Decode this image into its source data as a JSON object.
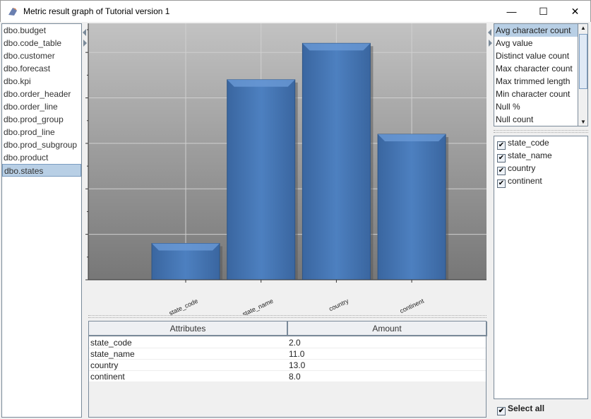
{
  "window": {
    "title": "Metric result graph of Tutorial version 1",
    "minimize": "—",
    "maximize": "☐",
    "close": "✕"
  },
  "tables": {
    "items": [
      "dbo.budget",
      "dbo.code_table",
      "dbo.customer",
      "dbo.forecast",
      "dbo.kpi",
      "dbo.order_header",
      "dbo.order_line",
      "dbo.prod_group",
      "dbo.prod_line",
      "dbo.prod_subgroup",
      "dbo.product",
      "dbo.states"
    ],
    "selected": "dbo.states"
  },
  "metrics": {
    "items": [
      "Avg character count",
      "Avg value",
      "Distinct value count",
      "Max character count",
      "Max trimmed length",
      "Min character count",
      "Null %",
      "Null count"
    ],
    "selected": "Avg character count"
  },
  "columns": {
    "items": [
      {
        "label": "state_code",
        "checked": true
      },
      {
        "label": "state_name",
        "checked": true
      },
      {
        "label": "country",
        "checked": true
      },
      {
        "label": "continent",
        "checked": true
      }
    ],
    "select_all": {
      "label": "Select all",
      "checked": true
    }
  },
  "result_table": {
    "headers": [
      "Attributes",
      "Amount"
    ],
    "rows": [
      [
        "state_code",
        "2.0"
      ],
      [
        "state_name",
        "11.0"
      ],
      [
        "country",
        "13.0"
      ],
      [
        "continent",
        "8.0"
      ]
    ]
  },
  "colors": {
    "bar": "#4a7ab8",
    "plot_top": "#c0c0c0",
    "plot_bottom": "#7a7a7a",
    "selection": "#b8cfe5"
  },
  "chart_data": {
    "type": "bar",
    "categories": [
      "state_code",
      "state_name",
      "country",
      "continent"
    ],
    "values": [
      2,
      11,
      13,
      8
    ],
    "title": "",
    "xlabel": "",
    "ylabel": "",
    "ylim": [
      0,
      14.1
    ],
    "yticks": [
      "0",
      "2.5",
      "5",
      "7.5",
      "10",
      "12.5"
    ],
    "grid": true
  }
}
